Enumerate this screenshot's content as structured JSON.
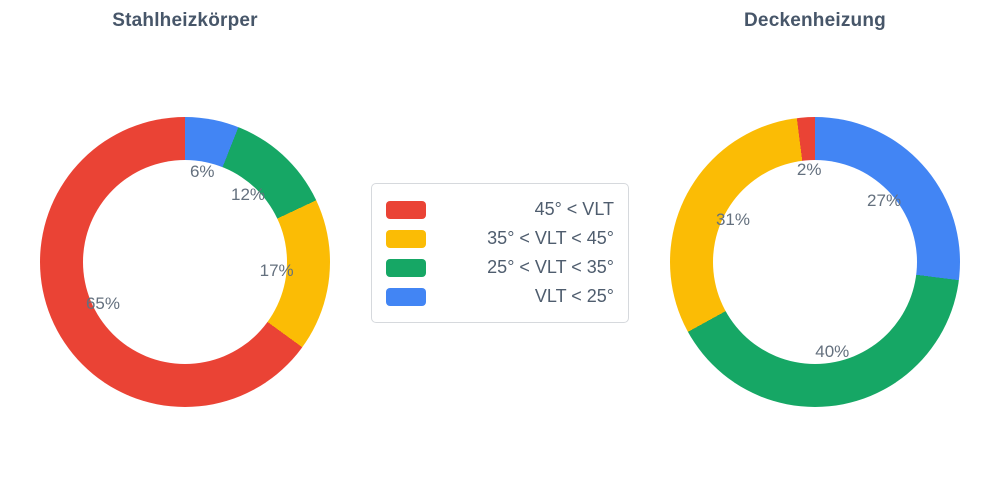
{
  "legend": {
    "items": [
      {
        "label": "45° < VLT",
        "color": "#ea4335"
      },
      {
        "label": "35° < VLT < 45°",
        "color": "#fbbc05"
      },
      {
        "label": "25° < VLT < 35°",
        "color": "#16a765"
      },
      {
        "label": "VLT < 25°",
        "color": "#4285f4"
      }
    ]
  },
  "chart_data": [
    {
      "type": "pie",
      "title": "Stahlheizkörper",
      "labels": [
        "45° < VLT",
        "35° < VLT < 45°",
        "25° < VLT < 35°",
        "VLT < 25°"
      ],
      "values": [
        65,
        17,
        12,
        6
      ],
      "texts": [
        "65%",
        "17%",
        "12%",
        "6%"
      ],
      "colors": [
        "#ea4335",
        "#fbbc05",
        "#16a765",
        "#4285f4"
      ],
      "hole": 0.7,
      "direction": "counterclockwise",
      "start_angle_deg": 0,
      "text_position": "inside"
    },
    {
      "type": "pie",
      "title": "Deckenheizung",
      "labels": [
        "45° < VLT",
        "35° < VLT < 45°",
        "25° < VLT < 35°",
        "VLT < 25°"
      ],
      "values": [
        2,
        31,
        40,
        27
      ],
      "texts": [
        "2%",
        "31%",
        "40%",
        "27%"
      ],
      "colors": [
        "#ea4335",
        "#fbbc05",
        "#16a765",
        "#4285f4"
      ],
      "hole": 0.7,
      "direction": "counterclockwise",
      "start_angle_deg": 0,
      "text_position": "inside"
    }
  ]
}
